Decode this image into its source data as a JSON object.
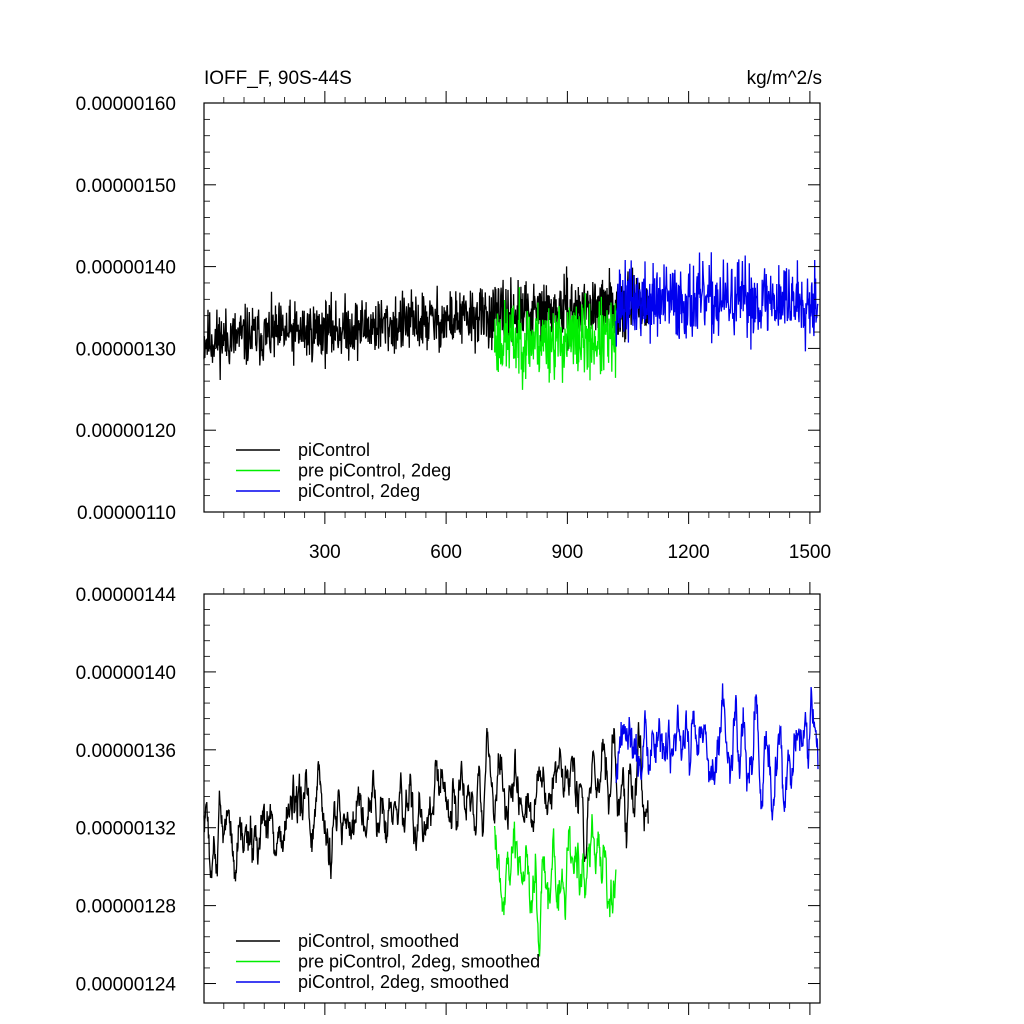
{
  "chart_data": [
    {
      "type": "line",
      "title_left": "IOFF_F, 90S-44S",
      "title_right": "kg/m^2/s",
      "xlim": [
        1,
        1525
      ],
      "ylim": [
        1.1e-06,
        1.6e-06
      ],
      "xticks": [
        300,
        600,
        900,
        1200,
        1500
      ],
      "xtick_labels": [
        "300",
        "600",
        "900",
        "1200",
        "1500"
      ],
      "yticks": [
        1.1e-06,
        1.2e-06,
        1.3e-06,
        1.4e-06,
        1.5e-06,
        1.6e-06
      ],
      "ytick_labels": [
        "0.00000110",
        "0.00000120",
        "0.00000130",
        "0.00000140",
        "0.00000150",
        "0.00000160"
      ],
      "legend_position": "bottom-left",
      "series": [
        {
          "name": "piControl",
          "color": "#000000",
          "x_range": [
            1,
            1100
          ],
          "y_start": 1.31e-06,
          "y_end": 1.355e-06,
          "noise": 5.5e-08,
          "smooth": 1,
          "seed": 11
        },
        {
          "name": "pre piControl, 2deg",
          "color": "#00ee00",
          "x_range": [
            720,
            1020
          ],
          "y_start": 1.31e-06,
          "y_end": 1.31e-06,
          "noise": 7e-08,
          "smooth": 1,
          "seed": 23
        },
        {
          "name": "piControl, 2deg",
          "color": "#0000ee",
          "x_range": [
            1020,
            1520
          ],
          "y_start": 1.355e-06,
          "y_end": 1.36e-06,
          "noise": 7e-08,
          "smooth": 1,
          "seed": 37
        }
      ]
    },
    {
      "type": "line",
      "xlim": [
        1,
        1525
      ],
      "ylim": [
        1.23e-06,
        1.44e-06
      ],
      "xticks": [
        300,
        600,
        900,
        1200,
        1500
      ],
      "xtick_labels": [],
      "yticks": [
        1.24e-06,
        1.28e-06,
        1.32e-06,
        1.36e-06,
        1.4e-06,
        1.44e-06
      ],
      "ytick_labels": [
        "0.00000124",
        "0.00000128",
        "0.00000132",
        "0.00000136",
        "0.00000140",
        "0.00000144"
      ],
      "legend_position": "bottom-left",
      "series": [
        {
          "name": "piControl, smoothed",
          "color": "#000000",
          "x_range": [
            1,
            1100
          ],
          "y_start": 1.315e-06,
          "y_end": 1.345e-06,
          "noise": 4.5e-08,
          "smooth": 4,
          "seed": 51
        },
        {
          "name": "pre piControl, 2deg, smoothed",
          "color": "#00ee00",
          "x_range": [
            720,
            1020
          ],
          "y_start": 1.305e-06,
          "y_end": 1.3e-06,
          "noise": 5e-08,
          "smooth": 4,
          "seed": 63
        },
        {
          "name": "piControl, 2deg, smoothed",
          "color": "#0000ee",
          "x_range": [
            1020,
            1520
          ],
          "y_start": 1.355e-06,
          "y_end": 1.36e-06,
          "noise": 5e-08,
          "smooth": 4,
          "seed": 77
        }
      ]
    }
  ]
}
